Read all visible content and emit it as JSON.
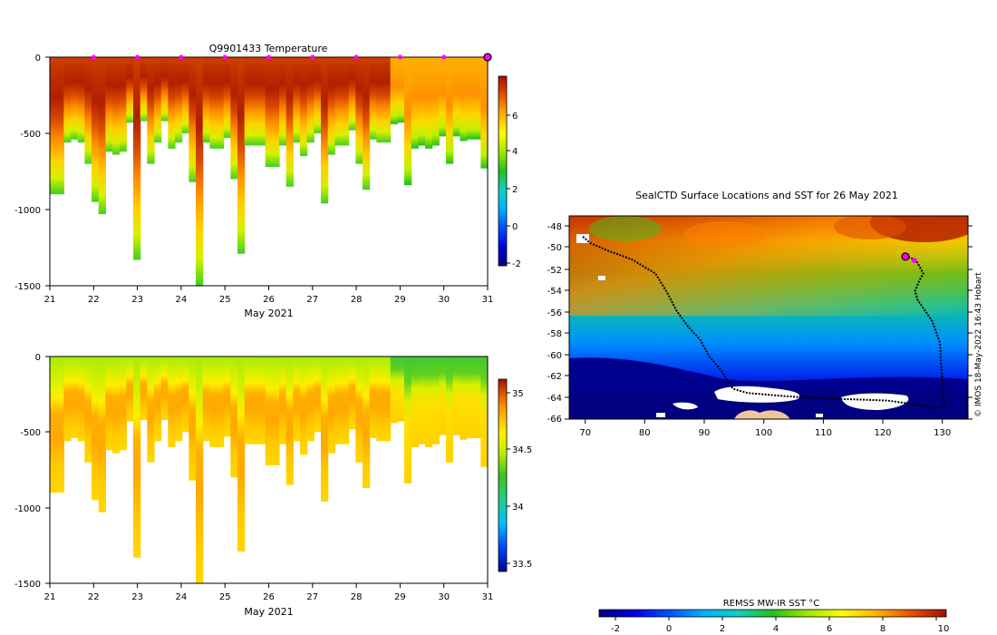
{
  "chart_data": [
    {
      "type": "heatmap",
      "id": "temperature-section",
      "title": "Q9901433  Temperature",
      "xlabel": "May 2021",
      "ylabel": "",
      "x_ticks": [
        "21",
        "22",
        "23",
        "24",
        "25",
        "26",
        "27",
        "28",
        "29",
        "30",
        "31"
      ],
      "y_ticks": [
        "0",
        "-500",
        "-1000",
        "-1500"
      ],
      "xlim": [
        21,
        31
      ],
      "ylim": [
        -1500,
        0
      ],
      "colorbar": {
        "ticks": [
          "-2",
          "0",
          "2",
          "4",
          "6"
        ],
        "range": [
          -3,
          8
        ]
      },
      "surface_markers_day": [
        22,
        23,
        24,
        25,
        26,
        27,
        28,
        29,
        30,
        31
      ]
    },
    {
      "type": "heatmap",
      "id": "salinity-section",
      "title": "",
      "xlabel": "May 2021",
      "ylabel": "",
      "x_ticks": [
        "21",
        "22",
        "23",
        "24",
        "25",
        "26",
        "27",
        "28",
        "29",
        "30",
        "31"
      ],
      "y_ticks": [
        "0",
        "-500",
        "-1000",
        "-1500"
      ],
      "xlim": [
        21,
        31
      ],
      "ylim": [
        -1500,
        0
      ],
      "colorbar": {
        "ticks": [
          "33.5",
          "34",
          "34.5",
          "35"
        ],
        "range": [
          33.4,
          35.15
        ]
      }
    },
    {
      "type": "heatmap",
      "id": "sst-map",
      "title": "SealCTD Surface Locations and SST for 26 May 2021",
      "x_ticks": [
        "70",
        "80",
        "90",
        "100",
        "110",
        "120",
        "130"
      ],
      "y_ticks": [
        "-48",
        "-50",
        "-52",
        "-54",
        "-56",
        "-58",
        "-60",
        "-62",
        "-64",
        "-66"
      ],
      "xlim": [
        67.5,
        134.5
      ],
      "ylim": [
        -66,
        -47.3
      ],
      "credit": "© IMOS 18-May-2022 16:43 Hobart",
      "colorbar": {
        "label": "REMSS MW-IR SST °C",
        "ticks": [
          "-2",
          "0",
          "2",
          "4",
          "6",
          "8",
          "10"
        ],
        "range": [
          -3,
          10
        ]
      },
      "track": [
        [
          69.8,
          -49.2
        ],
        [
          71,
          -49.8
        ],
        [
          74,
          -50.5
        ],
        [
          78,
          -51.3
        ],
        [
          82,
          -52.6
        ],
        [
          84,
          -54.4
        ],
        [
          85.5,
          -56
        ],
        [
          87.5,
          -57.5
        ],
        [
          89.5,
          -58.7
        ],
        [
          91,
          -60.2
        ],
        [
          93,
          -61.5
        ],
        [
          95,
          -63.2
        ],
        [
          97.5,
          -63.6
        ],
        [
          104,
          -63.9
        ],
        [
          110,
          -64.1
        ],
        [
          116,
          -64.2
        ],
        [
          121,
          -64.3
        ],
        [
          125,
          -64.6
        ],
        [
          129,
          -65
        ],
        [
          130.5,
          -64.8
        ],
        [
          130.3,
          -63.2
        ],
        [
          130,
          -61
        ],
        [
          129.8,
          -59
        ],
        [
          128.5,
          -57
        ],
        [
          127,
          -55.8
        ],
        [
          126,
          -55
        ],
        [
          125.6,
          -54.2
        ],
        [
          126.3,
          -53.3
        ],
        [
          127,
          -52.6
        ],
        [
          126,
          -51.6
        ],
        [
          125,
          -51.2
        ],
        [
          123.8,
          -51
        ]
      ],
      "highlight_positions": [
        [
          124,
          -51.05
        ],
        [
          125.5,
          -51.4
        ]
      ]
    }
  ],
  "colors": {
    "sea_ice": "#ffffff",
    "land": "#f2c49c",
    "track": "#000000",
    "marker": "#ff00ff"
  }
}
